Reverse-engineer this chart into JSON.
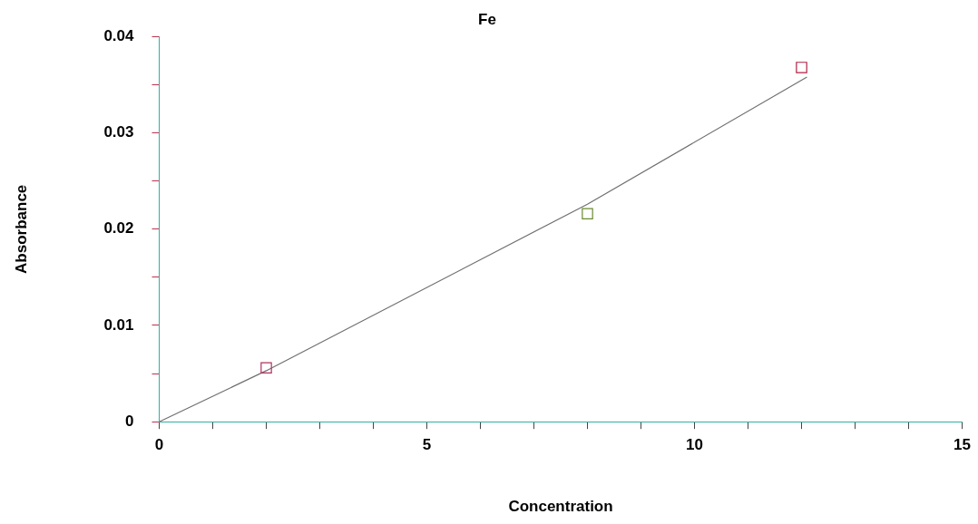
{
  "chart_data": {
    "type": "scatter",
    "title": "Fe",
    "xlabel": "Concentration",
    "ylabel": "Absorbance",
    "xlim": [
      0,
      15
    ],
    "xticks": [
      0,
      {
        "value": 1,
        "label": null
      },
      {
        "value": 2,
        "label": null
      },
      {
        "value": 3,
        "label": null
      },
      {
        "value": 4,
        "label": null
      },
      5,
      {
        "value": 6,
        "label": null
      },
      {
        "value": 7,
        "label": null
      },
      {
        "value": 8,
        "label": null
      },
      {
        "value": 9,
        "label": null
      },
      10,
      {
        "value": 11,
        "label": null
      },
      {
        "value": 12,
        "label": null
      },
      {
        "value": 13,
        "label": null
      },
      {
        "value": 14,
        "label": null
      },
      15
    ],
    "ylim": [
      0,
      0.04
    ],
    "yticks": [
      0,
      {
        "value": 0.005,
        "label": null
      },
      0.01,
      {
        "value": 0.015,
        "label": null
      },
      0.02,
      {
        "value": 0.025,
        "label": null
      },
      0.03,
      {
        "value": 0.035,
        "label": null
      },
      0.04
    ],
    "grid": false,
    "legend": false,
    "marker": "square",
    "series": [
      {
        "type": "scatter",
        "x": [
          2,
          8,
          12
        ],
        "values": [
          0.0056,
          0.0216,
          0.0368
        ],
        "colors": [
          "#b03060",
          "#6a8a30",
          "#b02040"
        ]
      },
      {
        "type": "line",
        "x": [
          0,
          2,
          8,
          12.1
        ],
        "values": [
          0,
          0.0053,
          0.0226,
          0.0358
        ],
        "color": "#707070",
        "marker": "none"
      }
    ]
  }
}
